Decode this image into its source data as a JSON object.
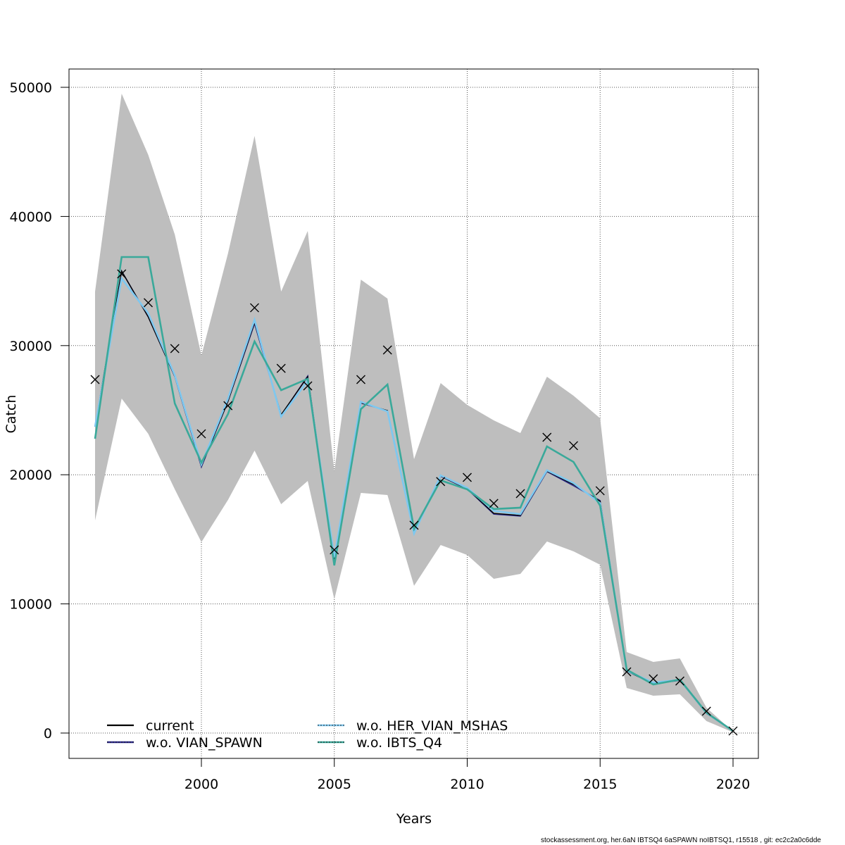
{
  "chart_data": {
    "type": "line",
    "title": "",
    "xlabel": "Years",
    "ylabel": "Catch",
    "xlim": [
      1994.98,
      2020.96
    ],
    "ylim": [
      -2000,
      52500
    ],
    "grid": true,
    "x_ticks": [
      2000,
      2005,
      2010,
      2015,
      2020
    ],
    "y_ticks": [
      0,
      10000,
      20000,
      30000,
      40000,
      50000
    ],
    "x_tick_labels": [
      "2000",
      "2005",
      "2010",
      "2015",
      "2020"
    ],
    "y_tick_labels": [
      "0",
      "10000",
      "20000",
      "30000",
      "40000",
      "50000"
    ],
    "x": [
      1996,
      1997,
      1998,
      1999,
      2000,
      2001,
      2002,
      2003,
      2004,
      2005,
      2006,
      2007,
      2008,
      2009,
      2010,
      2011,
      2012,
      2013,
      2014,
      2015,
      2016,
      2017,
      2018,
      2019,
      2020
    ],
    "confidence_band": {
      "name": "current 95% CI",
      "color": "#bebebe",
      "upper": [
        34190,
        49510,
        44770,
        38600,
        29230,
        37130,
        46240,
        34190,
        38880,
        20280,
        35110,
        33640,
        21210,
        27100,
        25410,
        24210,
        23230,
        27590,
        26120,
        24370,
        6270,
        5510,
        5780,
        1960,
        110
      ],
      "lower": [
        16470,
        25900,
        23170,
        18870,
        14780,
        18050,
        21870,
        17720,
        19520,
        10360,
        18590,
        18430,
        11400,
        14560,
        13790,
        11940,
        12320,
        14830,
        14070,
        13030,
        3490,
        2890,
        3000,
        930,
        55
      ]
    },
    "observations": {
      "name": "observed catch",
      "marker": "x",
      "color": "#000000",
      "values": [
        27370,
        35550,
        33320,
        29770,
        23170,
        25350,
        32930,
        28240,
        26880,
        14180,
        27370,
        29660,
        16090,
        19470,
        19790,
        17780,
        18540,
        22900,
        22250,
        18760,
        4740,
        4200,
        4030,
        1690,
        160
      ]
    },
    "series": [
      {
        "name": "current",
        "color": "#000000",
        "dash": "solid",
        "values": [
          23720,
          35770,
          32220,
          27600,
          20670,
          25680,
          31790,
          24650,
          27590,
          13300,
          25570,
          24970,
          15540,
          19900,
          18920,
          17010,
          16850,
          20280,
          19250,
          17940,
          4800,
          3820,
          4090,
          1530,
          160
        ]
      },
      {
        "name": "w.o. VIAN_SPAWN",
        "color": "#2d2a8c",
        "dash": "dotted",
        "values": [
          23720,
          35770,
          32220,
          27600,
          20600,
          25680,
          31700,
          24600,
          27650,
          13250,
          25550,
          24950,
          15500,
          19880,
          18900,
          16950,
          16800,
          20250,
          19150,
          18000,
          4800,
          3820,
          4080,
          1520,
          160
        ]
      },
      {
        "name": "w.o. HER_VIAN_MSHAS",
        "color": "#7ec8f0",
        "dash": "dotted",
        "values": [
          23720,
          35200,
          32500,
          27700,
          20800,
          25900,
          32000,
          24500,
          27300,
          13600,
          25650,
          24900,
          15450,
          19950,
          18980,
          17200,
          16950,
          20350,
          19350,
          17800,
          4830,
          3900,
          4120,
          1560,
          160
        ]
      },
      {
        "name": "w.o. IBTS_Q4",
        "color": "#3aa99a",
        "dash": "dotted",
        "values": [
          22790,
          36860,
          36860,
          25520,
          20940,
          24700,
          30320,
          26550,
          27430,
          12980,
          25080,
          26990,
          15810,
          19570,
          18870,
          17340,
          17450,
          22190,
          20990,
          17610,
          4910,
          3760,
          4140,
          1580,
          160
        ]
      }
    ],
    "legend": {
      "placement": "bottom-left",
      "columns": 2,
      "entries": [
        "current",
        "w.o. VIAN_SPAWN",
        "w.o. HER_VIAN_MSHAS",
        "w.o. IBTS_Q4"
      ]
    }
  },
  "footer": "stockassessment.org, her.6aN IBTSQ4 6aSPAWN noIBTSQ1, r15518 , git: ec2c2a0c6dde"
}
